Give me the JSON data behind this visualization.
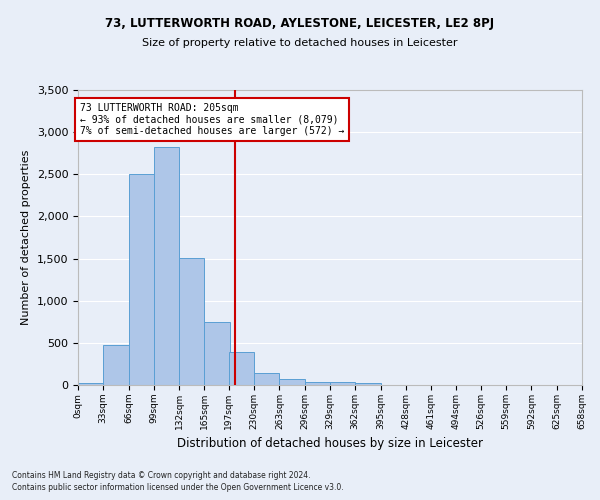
{
  "title1": "73, LUTTERWORTH ROAD, AYLESTONE, LEICESTER, LE2 8PJ",
  "title2": "Size of property relative to detached houses in Leicester",
  "xlabel": "Distribution of detached houses by size in Leicester",
  "ylabel": "Number of detached properties",
  "bar_color": "#aec6e8",
  "bar_edge_color": "#5a9fd4",
  "background_color": "#e8eef8",
  "fig_background_color": "#e8eef8",
  "grid_color": "#ffffff",
  "property_line_x": 205,
  "property_line_color": "#cc0000",
  "annotation_text": "73 LUTTERWORTH ROAD: 205sqm\n← 93% of detached houses are smaller (8,079)\n7% of semi-detached houses are larger (572) →",
  "annotation_box_color": "#ffffff",
  "annotation_box_edge": "#cc0000",
  "footnote1": "Contains HM Land Registry data © Crown copyright and database right 2024.",
  "footnote2": "Contains public sector information licensed under the Open Government Licence v3.0.",
  "bin_edges": [
    0,
    33,
    66,
    99,
    132,
    165,
    197,
    230,
    263,
    296,
    329,
    362,
    395,
    428,
    461,
    494,
    526,
    559,
    592,
    625,
    658
  ],
  "bin_labels": [
    "0sqm",
    "33sqm",
    "66sqm",
    "99sqm",
    "132sqm",
    "165sqm",
    "197sqm",
    "230sqm",
    "263sqm",
    "296sqm",
    "329sqm",
    "362sqm",
    "395sqm",
    "428sqm",
    "461sqm",
    "494sqm",
    "526sqm",
    "559sqm",
    "592sqm",
    "625sqm",
    "658sqm"
  ],
  "bar_heights": [
    20,
    470,
    2500,
    2820,
    1510,
    750,
    390,
    145,
    75,
    40,
    30,
    20,
    5,
    0,
    0,
    0,
    0,
    0,
    0,
    0
  ],
  "ylim": [
    0,
    3500
  ],
  "yticks": [
    0,
    500,
    1000,
    1500,
    2000,
    2500,
    3000,
    3500
  ]
}
